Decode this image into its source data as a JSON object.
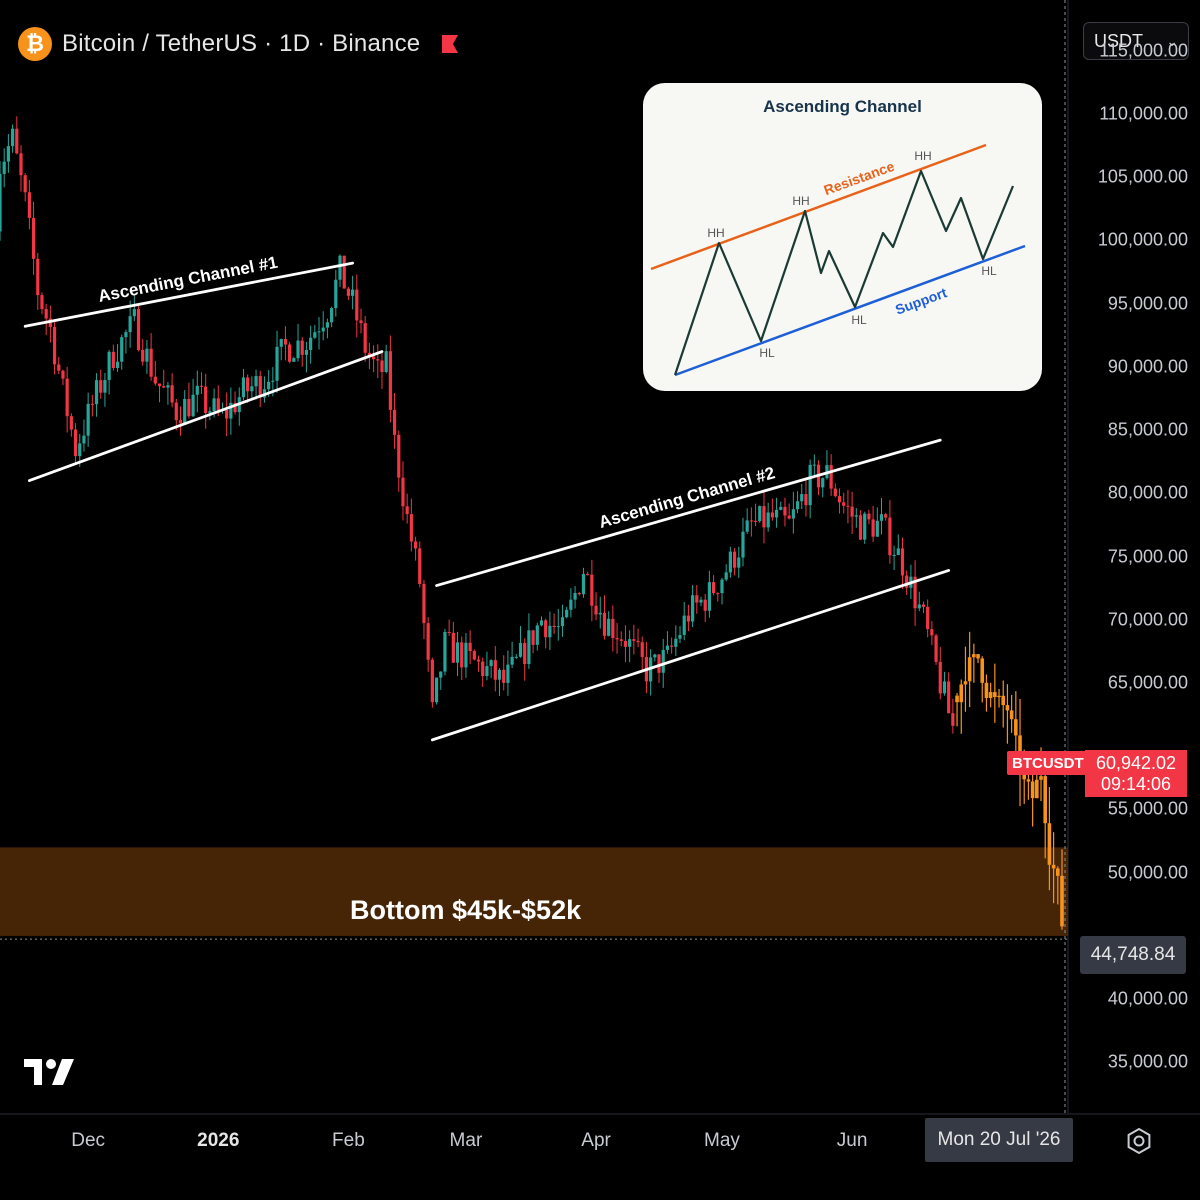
{
  "header": {
    "icon": "bitcoin-icon",
    "title": "Bitcoin / TetherUS · 1D · Binance",
    "flag_icon": "flag-icon"
  },
  "currency_select": {
    "value": "USDT"
  },
  "price_axis": {
    "labels": [
      {
        "value": 115000,
        "text": "115,000.00"
      },
      {
        "value": 110000,
        "text": "110,000.00"
      },
      {
        "value": 105000,
        "text": "105,000.00"
      },
      {
        "value": 100000,
        "text": "100,000.00"
      },
      {
        "value": 95000,
        "text": "95,000.00"
      },
      {
        "value": 90000,
        "text": "90,000.00"
      },
      {
        "value": 85000,
        "text": "85,000.00"
      },
      {
        "value": 80000,
        "text": "80,000.00"
      },
      {
        "value": 75000,
        "text": "75,000.00"
      },
      {
        "value": 70000,
        "text": "70,000.00"
      },
      {
        "value": 65000,
        "text": "65,000.00"
      },
      {
        "value": 55000,
        "text": "55,000.00"
      },
      {
        "value": 50000,
        "text": "50,000.00"
      },
      {
        "value": 40000,
        "text": "40,000.00"
      },
      {
        "value": 35000,
        "text": "35,000.00"
      }
    ]
  },
  "time_axis": {
    "labels": [
      {
        "date": "2025-12-01",
        "text": "Dec",
        "bold": false
      },
      {
        "date": "2026-01-01",
        "text": "2026",
        "bold": true
      },
      {
        "date": "2026-02-01",
        "text": "Feb",
        "bold": false
      },
      {
        "date": "2026-03-01",
        "text": "Mar",
        "bold": false
      },
      {
        "date": "2026-04-01",
        "text": "Apr",
        "bold": false
      },
      {
        "date": "2026-05-01",
        "text": "May",
        "bold": false
      },
      {
        "date": "2026-06-01",
        "text": "Jun",
        "bold": false
      }
    ],
    "crosshair_date": "Mon 20 Jul '26"
  },
  "live_price": {
    "symbol": "BTCUSDT",
    "price": "60,942.02",
    "countdown": "09:14:06",
    "value": 60942.02
  },
  "crosshair_price": {
    "text": "44,748.84",
    "value": 44748.84
  },
  "zone": {
    "label": "Bottom $45k-$52k",
    "low": 45000,
    "high": 52000
  },
  "annotations": {
    "channel1": "Ascending Channel #1",
    "channel2": "Ascending Channel #2"
  },
  "inset": {
    "title": "Ascending Channel",
    "resistance": "Resistance",
    "support": "Support",
    "hh": "HH",
    "hl": "HL"
  },
  "colors": {
    "up": "#26a69a",
    "down": "#f23645",
    "projection": "#f7931a",
    "zone": "#5a3008",
    "resistance": "#e8621a",
    "support": "#1e5fd6"
  },
  "chart_data": {
    "type": "candlestick",
    "x_unit": "date",
    "ylim": [
      31000,
      119000
    ],
    "xlim": [
      "2025-11-10",
      "2026-07-21"
    ],
    "channels": [
      {
        "label": "Ascending Channel #1",
        "upper": [
          [
            "2025-11-16",
            93200
          ],
          [
            "2026-02-02",
            98200
          ]
        ],
        "lower": [
          [
            "2025-11-17",
            81000
          ],
          [
            "2026-02-09",
            91200
          ]
        ]
      },
      {
        "label": "Ascending Channel #2",
        "upper": [
          [
            "2026-02-22",
            72700
          ],
          [
            "2026-06-22",
            84200
          ]
        ],
        "lower": [
          [
            "2026-02-21",
            60500
          ],
          [
            "2026-06-24",
            73900
          ]
        ]
      }
    ],
    "path_anchors": [
      [
        "2025-11-09",
        102000
      ],
      [
        "2025-11-10",
        106000
      ],
      [
        "2025-11-13",
        108000
      ],
      [
        "2025-11-16",
        103000
      ],
      [
        "2025-11-19",
        96000
      ],
      [
        "2025-11-22",
        93000
      ],
      [
        "2025-11-25",
        88000
      ],
      [
        "2025-11-28",
        83500
      ],
      [
        "2025-12-02",
        87000
      ],
      [
        "2025-12-07",
        91000
      ],
      [
        "2025-12-12",
        93500
      ],
      [
        "2025-12-17",
        89000
      ],
      [
        "2025-12-22",
        86500
      ],
      [
        "2025-12-27",
        87500
      ],
      [
        "2026-01-02",
        86000
      ],
      [
        "2026-01-07",
        88000
      ],
      [
        "2026-01-12",
        89000
      ],
      [
        "2026-01-17",
        91500
      ],
      [
        "2026-01-22",
        92000
      ],
      [
        "2026-01-27",
        94500
      ],
      [
        "2026-01-30",
        97500
      ],
      [
        "2026-02-02",
        95000
      ],
      [
        "2026-02-05",
        91500
      ],
      [
        "2026-02-08",
        89500
      ],
      [
        "2026-02-10",
        90000
      ],
      [
        "2026-02-12",
        84000
      ],
      [
        "2026-02-15",
        78000
      ],
      [
        "2026-02-18",
        73000
      ],
      [
        "2026-02-21",
        62500
      ],
      [
        "2026-02-24",
        68000
      ],
      [
        "2026-03-01",
        67000
      ],
      [
        "2026-03-06",
        66000
      ],
      [
        "2026-03-10",
        65000
      ],
      [
        "2026-03-14",
        67000
      ],
      [
        "2026-03-19",
        70000
      ],
      [
        "2026-03-24",
        69000
      ],
      [
        "2026-03-29",
        74000
      ],
      [
        "2026-04-03",
        70000
      ],
      [
        "2026-04-08",
        68500
      ],
      [
        "2026-04-13",
        66000
      ],
      [
        "2026-04-18",
        67000
      ],
      [
        "2026-04-23",
        70500
      ],
      [
        "2026-04-28",
        72000
      ],
      [
        "2026-05-03",
        74500
      ],
      [
        "2026-05-08",
        77500
      ],
      [
        "2026-05-13",
        78000
      ],
      [
        "2026-05-17",
        77500
      ],
      [
        "2026-05-22",
        81000
      ],
      [
        "2026-05-26",
        81500
      ],
      [
        "2026-05-30",
        79000
      ],
      [
        "2026-06-03",
        77500
      ],
      [
        "2026-06-08",
        77500
      ],
      [
        "2026-06-13",
        74500
      ],
      [
        "2026-06-18",
        70000
      ],
      [
        "2026-06-22",
        65000
      ],
      [
        "2026-06-25",
        61500
      ]
    ],
    "projection_anchors": [
      [
        "2026-06-26",
        64000
      ],
      [
        "2026-06-28",
        66000
      ],
      [
        "2026-07-01",
        67000
      ],
      [
        "2026-07-03",
        64500
      ],
      [
        "2026-07-05",
        63500
      ],
      [
        "2026-07-08",
        63000
      ],
      [
        "2026-07-10",
        60000
      ],
      [
        "2026-07-12",
        57000
      ],
      [
        "2026-07-14",
        56000
      ],
      [
        "2026-07-16",
        58000
      ],
      [
        "2026-07-18",
        51500
      ],
      [
        "2026-07-20",
        49000
      ],
      [
        "2026-07-21",
        46000
      ]
    ]
  }
}
